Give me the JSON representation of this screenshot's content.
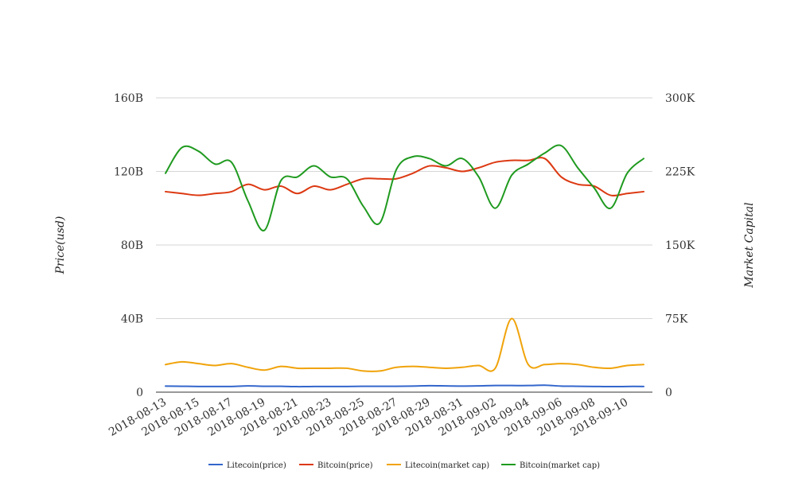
{
  "chart_data": {
    "type": "line",
    "title": "",
    "xlabel": "",
    "ylabel": "Price(usd)",
    "y2label": "Market Capital",
    "x": [
      "2018-08-13",
      "2018-08-14",
      "2018-08-15",
      "2018-08-16",
      "2018-08-17",
      "2018-08-18",
      "2018-08-19",
      "2018-08-20",
      "2018-08-21",
      "2018-08-22",
      "2018-08-23",
      "2018-08-24",
      "2018-08-25",
      "2018-08-26",
      "2018-08-27",
      "2018-08-28",
      "2018-08-29",
      "2018-08-30",
      "2018-08-31",
      "2018-09-01",
      "2018-09-02",
      "2018-09-03",
      "2018-09-04",
      "2018-09-05",
      "2018-09-06",
      "2018-09-07",
      "2018-09-08",
      "2018-09-09",
      "2018-09-10",
      "2018-09-11"
    ],
    "x_tick_labels": [
      "2018-08-13",
      "2018-08-15",
      "2018-08-17",
      "2018-08-19",
      "2018-08-21",
      "2018-08-23",
      "2018-08-25",
      "2018-08-27",
      "2018-08-29",
      "2018-08-31",
      "2018-09-02",
      "2018-09-04",
      "2018-09-06",
      "2018-09-08",
      "2018-09-10"
    ],
    "y_left": {
      "ticks": [
        "0",
        "40B",
        "80B",
        "120B",
        "160B"
      ],
      "ylim": [
        0,
        160
      ]
    },
    "y_right": {
      "ticks": [
        "0",
        "75K",
        "150K",
        "225K",
        "300K"
      ],
      "ylim": [
        0,
        300
      ]
    },
    "grid": true,
    "legend_position": "bottom",
    "series": [
      {
        "name": "Litecoin(price)",
        "color": "#3366cc",
        "values": [
          3.3,
          3.2,
          3.1,
          3.1,
          3.1,
          3.4,
          3.2,
          3.2,
          3.0,
          3.1,
          3.1,
          3.1,
          3.2,
          3.2,
          3.2,
          3.3,
          3.5,
          3.4,
          3.3,
          3.4,
          3.6,
          3.6,
          3.6,
          3.8,
          3.3,
          3.2,
          3.1,
          3.0,
          3.1,
          3.1
        ]
      },
      {
        "name": "Bitcoin(price)",
        "color": "#dc3912",
        "values": [
          109,
          108,
          107,
          108,
          109,
          113,
          110,
          112,
          108,
          112,
          110,
          113,
          116,
          116,
          116,
          119,
          123,
          122,
          120,
          122,
          125,
          126,
          126,
          127,
          117,
          113,
          112,
          107,
          108,
          109
        ]
      },
      {
        "name": "Litecoin(market cap)",
        "color": "#f0a30a",
        "values": [
          15.0,
          16.5,
          15.5,
          14.5,
          15.5,
          13.5,
          12.0,
          14.0,
          13.0,
          13.0,
          13.0,
          13.0,
          11.5,
          11.5,
          13.5,
          14.0,
          13.5,
          13.0,
          13.5,
          14.5,
          13.0,
          40.0,
          15.0,
          15.0,
          15.5,
          15.0,
          13.5,
          13.0,
          14.5,
          15.0
        ]
      },
      {
        "name": "Bitcoin(market cap)",
        "color": "#1f9a1f",
        "values": [
          119,
          133,
          131,
          124,
          125,
          104,
          88,
          115,
          117,
          123,
          117,
          116,
          101,
          92,
          121,
          128,
          127,
          123,
          127,
          117,
          100,
          118,
          124,
          130,
          134,
          122,
          111,
          100,
          119,
          127
        ]
      }
    ]
  }
}
